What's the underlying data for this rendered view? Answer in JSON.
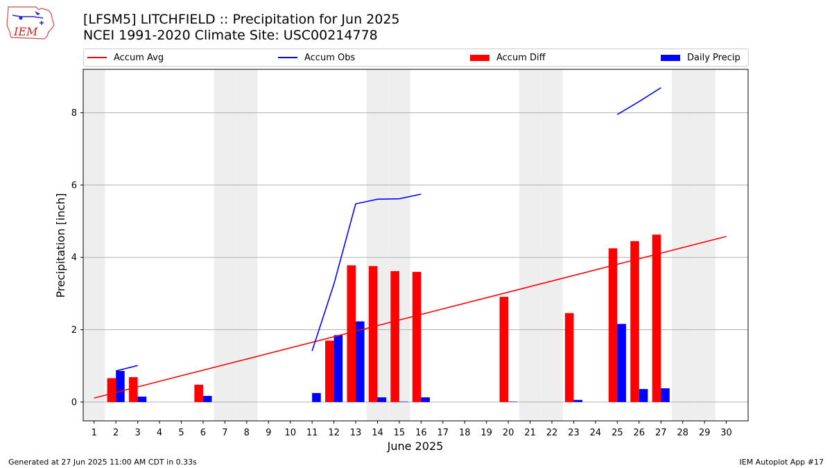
{
  "logo": {
    "text": "IEM"
  },
  "title": {
    "line1": "[LFSM5] LITCHFIELD :: Precipitation for Jun 2025",
    "line2": "NCEI 1991-2020 Climate Site: USC00214778"
  },
  "legend": {
    "accum_avg": "Accum Avg",
    "accum_obs": "Accum Obs",
    "accum_diff": "Accum Diff",
    "daily_precip": "Daily Precip"
  },
  "colors": {
    "accum_avg": "#ff0000",
    "accum_obs": "#0000ff",
    "accum_diff": "#ff0000",
    "daily_precip": "#0000ff",
    "weekend_shade": "#eeeeee",
    "grid": "#b0b0b0"
  },
  "chart_data": {
    "type": "bar",
    "xlabel": "June 2025",
    "ylabel": "Precipitation [inch]",
    "xlim": [
      0.5,
      31.0
    ],
    "ylim": [
      -0.52,
      9.2
    ],
    "yticks": [
      0,
      2,
      4,
      6,
      8
    ],
    "grid": "y",
    "legend_position": "top",
    "weekend_days": [
      1,
      7,
      8,
      14,
      15,
      21,
      22,
      28,
      29
    ],
    "days": [
      1,
      2,
      3,
      4,
      5,
      6,
      7,
      8,
      9,
      10,
      11,
      12,
      13,
      14,
      15,
      16,
      17,
      18,
      19,
      20,
      21,
      22,
      23,
      24,
      25,
      26,
      27,
      28,
      29,
      30
    ],
    "series": [
      {
        "name": "Accum Avg",
        "kind": "line",
        "x": [
          1,
          30
        ],
        "values": [
          0.11,
          4.58
        ]
      },
      {
        "name": "Accum Obs",
        "kind": "line",
        "segments": [
          {
            "x": [
              2,
              3
            ],
            "values": [
              0.86,
              1.01
            ]
          },
          {
            "x": [
              11,
              12,
              13,
              14,
              15,
              16
            ],
            "values": [
              1.41,
              3.26,
              5.48,
              5.61,
              5.62,
              5.75
            ]
          },
          {
            "x": [
              25,
              26,
              27
            ],
            "values": [
              7.95,
              8.31,
              8.69
            ]
          }
        ]
      },
      {
        "name": "Accum Diff",
        "kind": "bar",
        "x": [
          2,
          3,
          6,
          12,
          13,
          14,
          15,
          16,
          20,
          23,
          25,
          26,
          27
        ],
        "values": [
          0.66,
          0.69,
          0.48,
          1.7,
          3.78,
          3.76,
          3.62,
          3.6,
          2.91,
          2.46,
          4.25,
          4.45,
          4.63
        ]
      },
      {
        "name": "Daily Precip",
        "kind": "bar",
        "x": [
          2,
          3,
          6,
          11,
          12,
          13,
          14,
          15,
          16,
          20,
          23,
          25,
          26,
          27
        ],
        "values": [
          0.86,
          0.15,
          0.17,
          0.25,
          1.85,
          2.23,
          0.13,
          0.01,
          0.13,
          0.01,
          0.06,
          2.16,
          0.36,
          0.38
        ]
      }
    ]
  },
  "footer": {
    "left": "Generated at 27 Jun 2025 11:00 AM CDT in 0.33s",
    "right": "IEM Autoplot App #17"
  }
}
